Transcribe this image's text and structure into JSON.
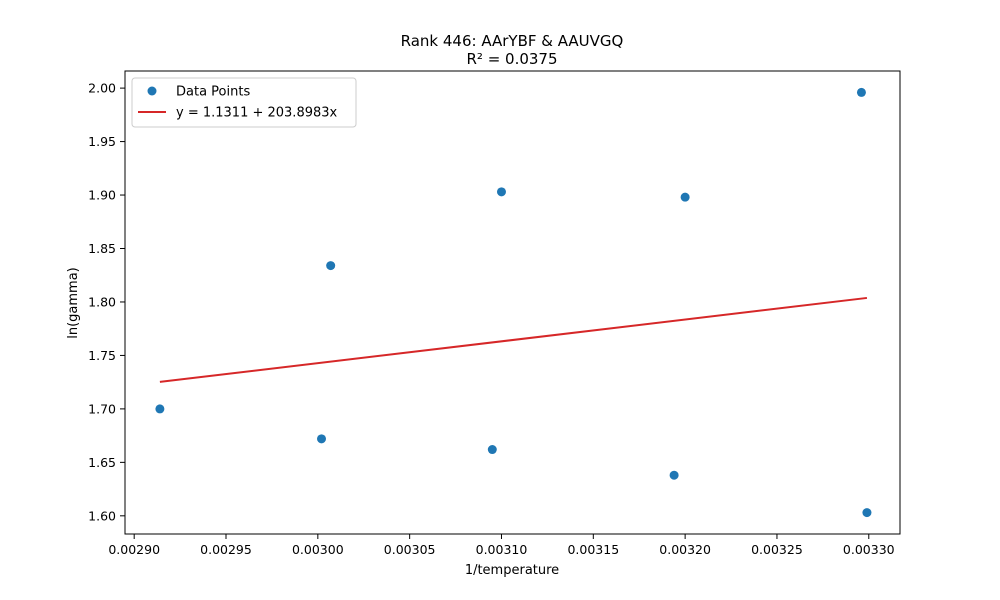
{
  "chart_data": {
    "type": "scatter",
    "title": "Rank 446: AArYBF & AAUVGQ",
    "subtitle": "R² = 0.0375",
    "xlabel": "1/temperature",
    "ylabel": "ln(gamma)",
    "xlim": [
      0.002895,
      0.003317
    ],
    "ylim": [
      1.583,
      2.016
    ],
    "xticks": [
      0.0029,
      0.00295,
      0.003,
      0.00305,
      0.0031,
      0.00315,
      0.0032,
      0.00325,
      0.0033
    ],
    "xtick_labels": [
      "0.00290",
      "0.00295",
      "0.00300",
      "0.00305",
      "0.00310",
      "0.00315",
      "0.00320",
      "0.00325",
      "0.00330"
    ],
    "yticks": [
      1.6,
      1.65,
      1.7,
      1.75,
      1.8,
      1.85,
      1.9,
      1.95,
      2.0
    ],
    "ytick_labels": [
      "1.60",
      "1.65",
      "1.70",
      "1.75",
      "1.80",
      "1.85",
      "1.90",
      "1.95",
      "2.00"
    ],
    "grid": false,
    "legend": {
      "position": "upper-left",
      "entries": [
        {
          "label": "Data Points",
          "kind": "marker",
          "color": "#1f77b4"
        },
        {
          "label": "y = 1.1311 + 203.8983x",
          "kind": "line",
          "color": "#d62728"
        }
      ]
    },
    "series": [
      {
        "name": "Data Points",
        "kind": "scatter",
        "color": "#1f77b4",
        "x": [
          0.002914,
          0.003002,
          0.003007,
          0.003095,
          0.0031,
          0.003194,
          0.0032,
          0.003296,
          0.003299
        ],
        "y": [
          1.7,
          1.672,
          1.834,
          1.662,
          1.903,
          1.638,
          1.898,
          1.996,
          1.603
        ]
      },
      {
        "name": "y = 1.1311 + 203.8983x",
        "kind": "line",
        "color": "#d62728",
        "intercept": 1.1311,
        "slope": 203.8983,
        "x_range": [
          0.002914,
          0.003299
        ]
      }
    ]
  }
}
